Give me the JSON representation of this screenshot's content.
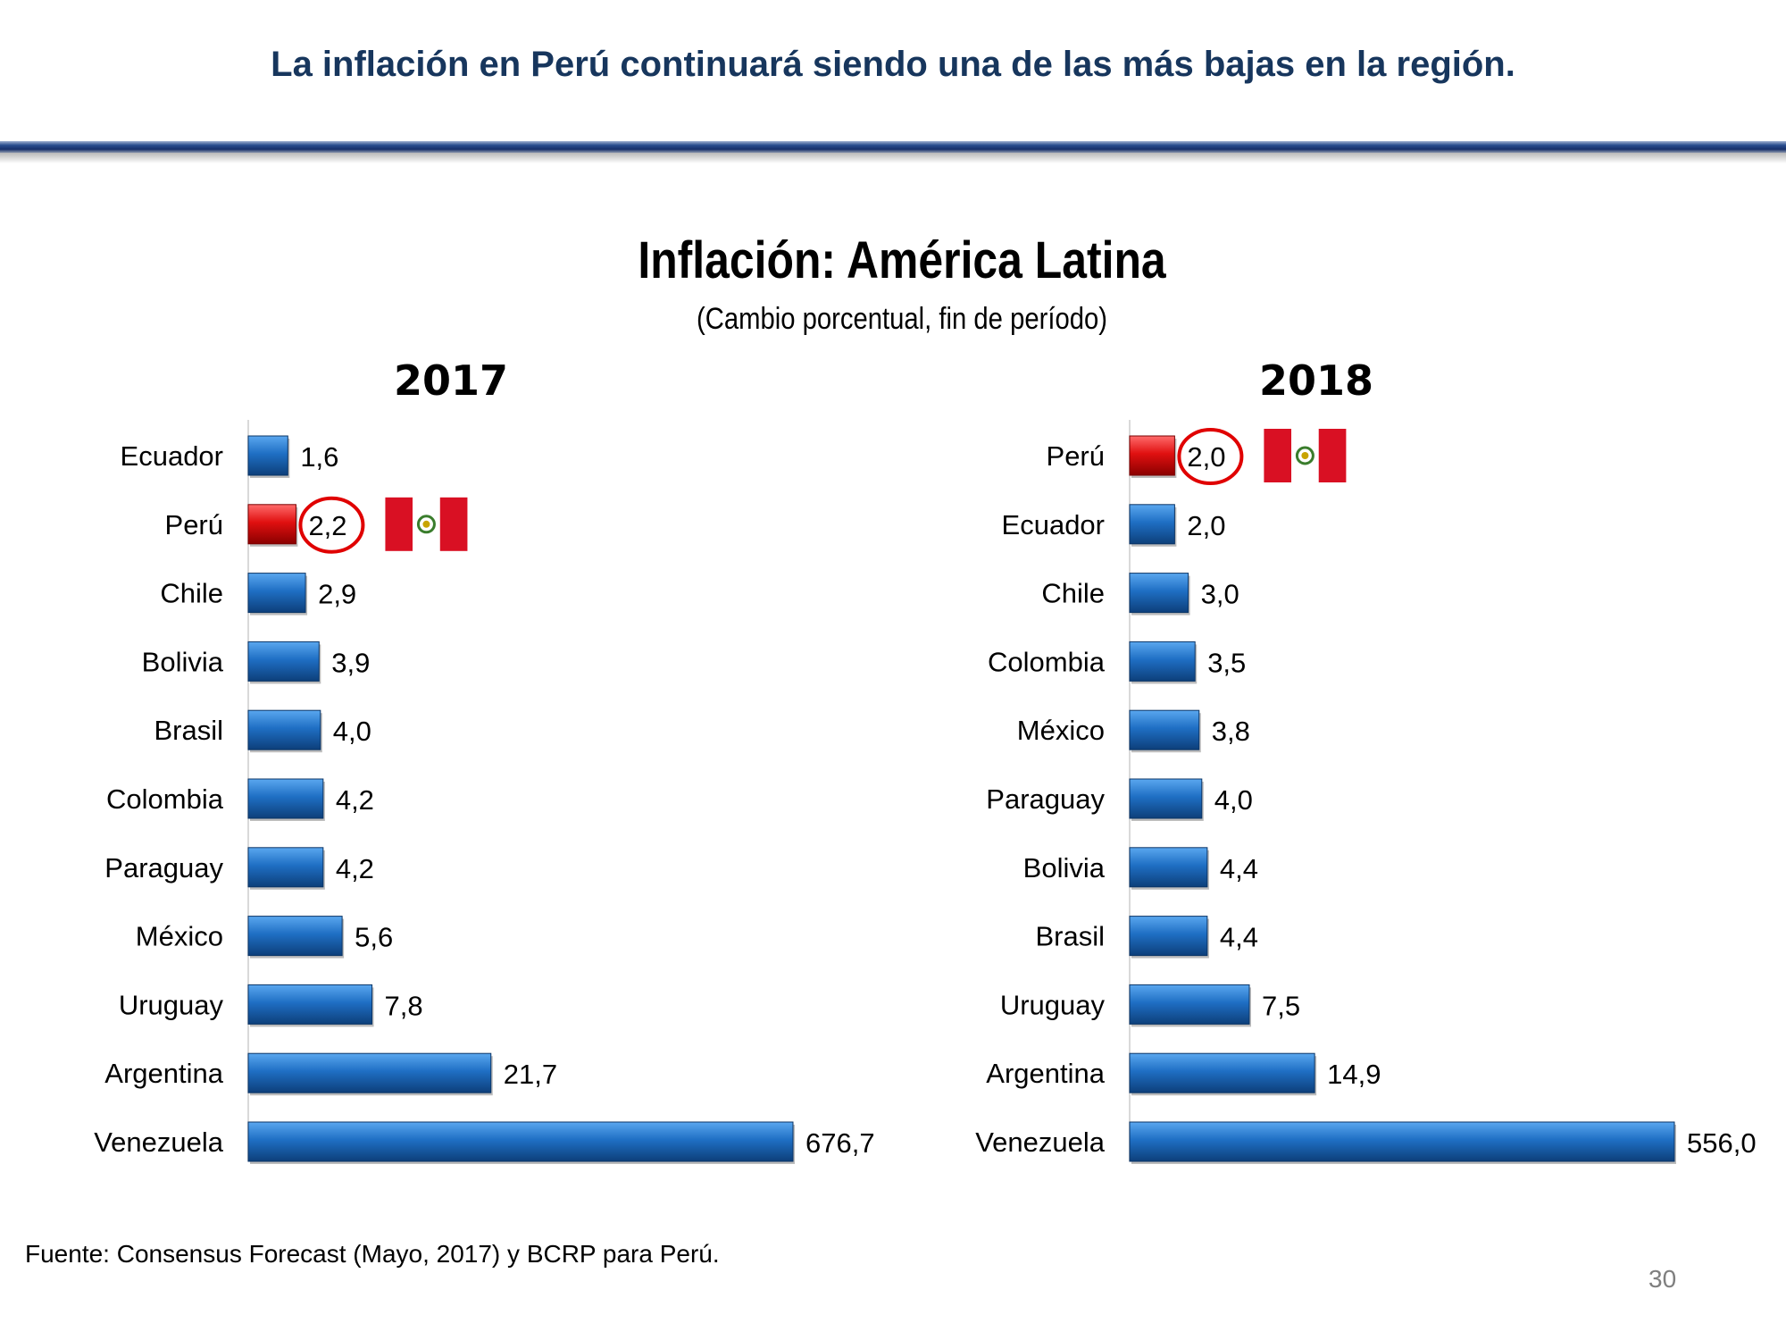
{
  "slide": {
    "headline": "La inflación en Perú continuará siendo una de las más bajas en la región.",
    "source": "Fuente: Consensus Forecast (Mayo, 2017) y BCRP para Perú.",
    "page_number": "30"
  },
  "colors": {
    "headline": "#17365d",
    "bar_blue": "#1f6fc4",
    "bar_red": "#e01010",
    "highlight_circle": "#e00000",
    "flag_red": "#d91023"
  },
  "chart_data": [
    {
      "type": "bar",
      "orientation": "horizontal",
      "title": "Inflación: América Latina",
      "subtitle": "(Cambio porcentual, fin de período)",
      "panel_title": "2017",
      "categories": [
        "Ecuador",
        "Perú",
        "Chile",
        "Bolivia",
        "Brasil",
        "Colombia",
        "Paraguay",
        "México",
        "Uruguay",
        "Argentina",
        "Venezuela"
      ],
      "values": [
        1.6,
        2.2,
        2.9,
        3.9,
        4.0,
        4.2,
        4.2,
        5.6,
        7.8,
        21.7,
        676.7
      ],
      "value_labels": [
        "1,6",
        "2,2",
        "2,9",
        "3,9",
        "4,0",
        "4,2",
        "4,2",
        "5,6",
        "7,8",
        "21,7",
        "676,7"
      ],
      "highlight": "Perú",
      "scale": "broken (values not to linear scale)",
      "xlabel": "",
      "ylabel": ""
    },
    {
      "type": "bar",
      "orientation": "horizontal",
      "panel_title": "2018",
      "categories": [
        "Perú",
        "Ecuador",
        "Chile",
        "Colombia",
        "México",
        "Paraguay",
        "Bolivia",
        "Brasil",
        "Uruguay",
        "Argentina",
        "Venezuela"
      ],
      "values": [
        2.0,
        2.0,
        3.0,
        3.5,
        3.8,
        4.0,
        4.4,
        4.4,
        7.5,
        14.9,
        556.0
      ],
      "value_labels": [
        "2,0",
        "2,0",
        "3,0",
        "3,5",
        "3,8",
        "4,0",
        "4,4",
        "4,4",
        "7,5",
        "14,9",
        "556,0"
      ],
      "highlight": "Perú",
      "scale": "broken (values not to linear scale)",
      "xlabel": "",
      "ylabel": ""
    }
  ]
}
